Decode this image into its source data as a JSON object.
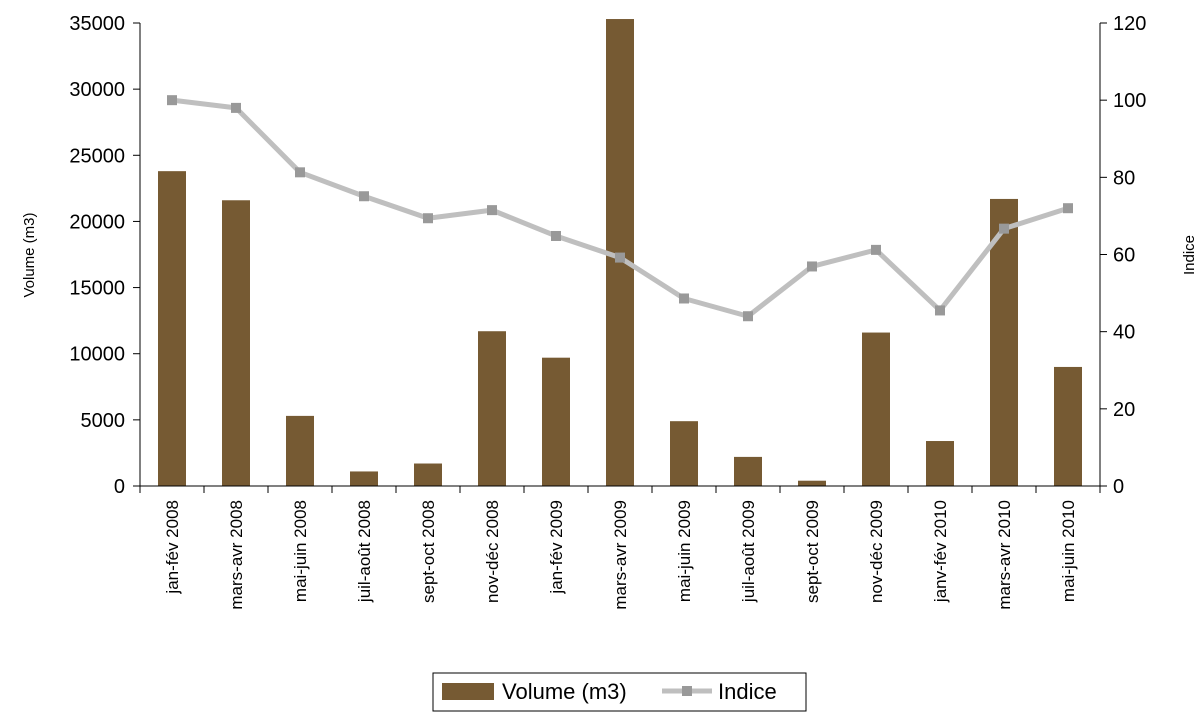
{
  "chart_data": {
    "type": "bar",
    "categories": [
      "jan-fév 2008",
      "mars-avr 2008",
      "mai-juin 2008",
      "juil-août 2008",
      "sept-oct 2008",
      "nov-déc 2008",
      "jan-fév 2009",
      "mars-avr 2009",
      "mai-juin 2009",
      "juil-août 2009",
      "sept-oct 2009",
      "nov-déc 2009",
      "janv-fév 2010",
      "mars-avr 2010",
      "mai-juin 2010"
    ],
    "series": [
      {
        "name": "Volume (m3)",
        "type": "bar",
        "axis": "left",
        "color": "#765a33",
        "values": [
          23800,
          21600,
          5300,
          1100,
          1700,
          11700,
          9700,
          35300,
          4900,
          2200,
          400,
          11600,
          3400,
          21700,
          9000
        ]
      },
      {
        "name": "Indice",
        "type": "line",
        "axis": "right",
        "color": "#bfbfbf",
        "marker_color": "#999999",
        "values": [
          100,
          98,
          81.3,
          75.1,
          69.4,
          71.5,
          64.8,
          59.2,
          48.6,
          44,
          56.9,
          61.2,
          45.5,
          66.7,
          72
        ]
      }
    ],
    "ylabel": "Volume (m3)",
    "y2label": "Indice",
    "ylim": [
      0,
      35000
    ],
    "y2lim": [
      0,
      120
    ],
    "yticks": [
      "0",
      "5000",
      "10000",
      "15000",
      "20000",
      "25000",
      "30000",
      "35000"
    ],
    "y2ticks": [
      "0",
      "20",
      "40",
      "60",
      "80",
      "100",
      "120"
    ],
    "grid": false,
    "legend_position": "bottom"
  }
}
